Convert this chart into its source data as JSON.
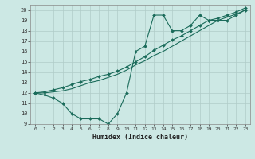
{
  "xlabel": "Humidex (Indice chaleur)",
  "xlim": [
    -0.5,
    23.5
  ],
  "ylim": [
    9,
    20.5
  ],
  "xticks": [
    0,
    1,
    2,
    3,
    4,
    5,
    6,
    7,
    8,
    9,
    10,
    11,
    12,
    13,
    14,
    15,
    16,
    17,
    18,
    19,
    20,
    21,
    22,
    23
  ],
  "yticks": [
    9,
    10,
    11,
    12,
    13,
    14,
    15,
    16,
    17,
    18,
    19,
    20
  ],
  "background_color": "#cce8e4",
  "grid_color": "#b0ccc8",
  "line_color": "#1a6b5a",
  "line1_x": [
    0,
    1,
    2,
    3,
    4,
    5,
    6,
    7,
    8,
    9,
    10,
    11,
    12,
    13,
    14,
    15,
    16,
    17,
    18,
    19,
    20,
    21,
    22,
    23
  ],
  "line1_y": [
    12,
    11.8,
    11.5,
    11,
    10,
    9.5,
    9.5,
    9.5,
    9,
    10,
    12,
    16,
    16.5,
    19.5,
    19.5,
    18,
    18,
    18.5,
    19.5,
    19,
    19,
    19,
    19.5,
    20
  ],
  "line2_x": [
    0,
    1,
    2,
    3,
    4,
    5,
    6,
    7,
    8,
    9,
    10,
    11,
    12,
    13,
    14,
    15,
    16,
    17,
    18,
    19,
    20,
    21,
    22,
    23
  ],
  "line2_y": [
    12,
    12.1,
    12.3,
    12.5,
    12.8,
    13.1,
    13.3,
    13.6,
    13.8,
    14.1,
    14.5,
    15.0,
    15.5,
    16.1,
    16.6,
    17.1,
    17.5,
    18.0,
    18.5,
    19.0,
    19.2,
    19.5,
    19.8,
    20.2
  ],
  "line3_x": [
    0,
    1,
    2,
    3,
    4,
    5,
    6,
    7,
    8,
    9,
    10,
    11,
    12,
    13,
    14,
    15,
    16,
    17,
    18,
    19,
    20,
    21,
    22,
    23
  ],
  "line3_y": [
    12,
    12.0,
    12.1,
    12.2,
    12.4,
    12.7,
    13.0,
    13.2,
    13.5,
    13.8,
    14.2,
    14.7,
    15.1,
    15.6,
    16.0,
    16.5,
    17.0,
    17.5,
    18.0,
    18.5,
    19.0,
    19.3,
    19.6,
    20.0
  ]
}
